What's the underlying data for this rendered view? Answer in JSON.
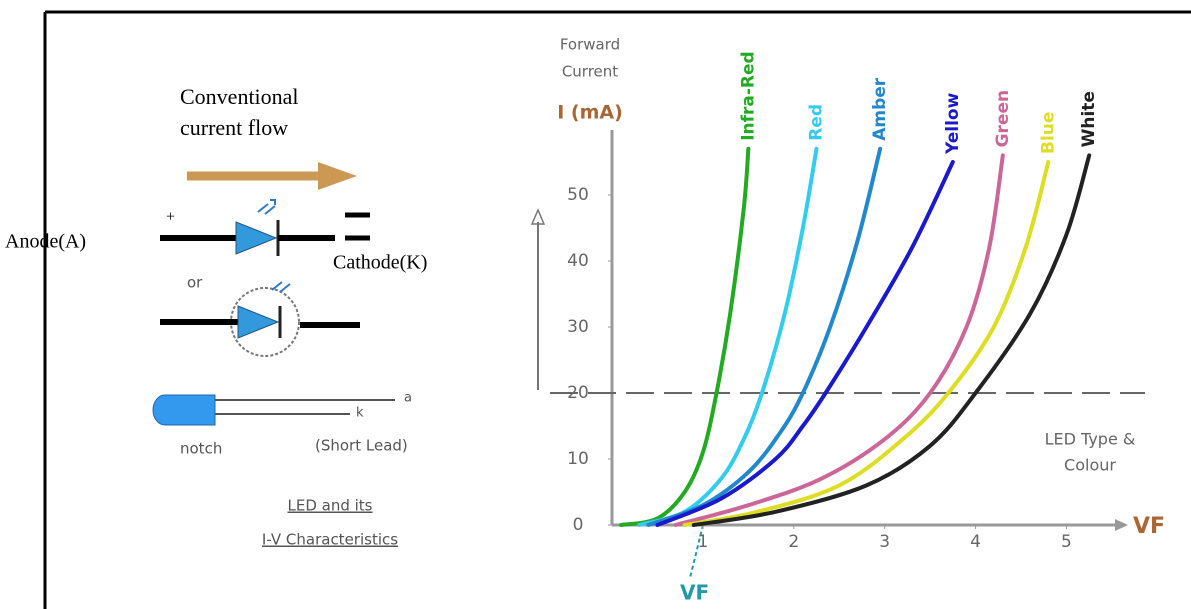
{
  "chart_data": {
    "type": "line",
    "y_label_lines": [
      "Forward",
      "Current"
    ],
    "y_unit": "I (mA)",
    "x_label": "VF",
    "vf_marker": "VF",
    "note_lines": [
      "LED Type &",
      "Colour"
    ],
    "xlim": [
      0,
      5.6
    ],
    "ylim": [
      0,
      60
    ],
    "xticks": [
      1,
      2,
      3,
      4,
      5
    ],
    "yticks": [
      0,
      10,
      20,
      30,
      40,
      50
    ],
    "ref_line": 20,
    "series": [
      {
        "name": "Infra-Red",
        "color": "#22aa22",
        "x": [
          0.1,
          0.5,
          0.8,
          1.0,
          1.15,
          1.3,
          1.45,
          1.5
        ],
        "values": [
          0,
          1,
          5,
          11,
          20,
          32,
          48,
          57
        ]
      },
      {
        "name": "Red",
        "color": "#33ccee",
        "x": [
          0.3,
          0.8,
          1.2,
          1.45,
          1.65,
          1.9,
          2.1,
          2.25
        ],
        "values": [
          0,
          2,
          7,
          13,
          20,
          32,
          45,
          57
        ]
      },
      {
        "name": "Amber",
        "color": "#2288cc",
        "x": [
          0.4,
          1.0,
          1.5,
          1.85,
          2.1,
          2.4,
          2.7,
          2.95
        ],
        "values": [
          0,
          3,
          8,
          14,
          20,
          30,
          43,
          57
        ]
      },
      {
        "name": "Yellow",
        "color": "#1a1acc",
        "x": [
          0.5,
          1.2,
          1.8,
          2.1,
          2.35,
          2.8,
          3.3,
          3.75
        ],
        "values": [
          0,
          4,
          10,
          15,
          20,
          30,
          42,
          55
        ]
      },
      {
        "name": "Green",
        "color": "#cc6699",
        "x": [
          0.7,
          1.5,
          2.3,
          3.0,
          3.5,
          3.9,
          4.15,
          4.3
        ],
        "values": [
          0,
          3,
          7,
          13,
          20,
          30,
          42,
          56
        ]
      },
      {
        "name": "Blue",
        "color": "#dddd22",
        "x": [
          0.8,
          1.6,
          2.5,
          3.2,
          3.7,
          4.2,
          4.55,
          4.8
        ],
        "values": [
          0,
          2,
          6,
          13,
          20,
          30,
          42,
          55
        ]
      },
      {
        "name": "White",
        "color": "#222222",
        "x": [
          0.9,
          1.8,
          2.8,
          3.5,
          4.0,
          4.6,
          5.0,
          5.25
        ],
        "values": [
          0,
          2,
          6,
          12,
          20,
          32,
          44,
          56
        ]
      }
    ]
  },
  "diagram": {
    "flow_lines": [
      "Conventional",
      "current flow"
    ],
    "anode": "Anode(A)",
    "plus": "+",
    "cathode": "Cathode(K)",
    "or": "or",
    "lead_a": "a",
    "lead_k": "k",
    "notch": "notch",
    "short_lead": "(Short Lead)",
    "caption_lines": [
      "LED and its",
      "I-V Characteristics"
    ]
  }
}
